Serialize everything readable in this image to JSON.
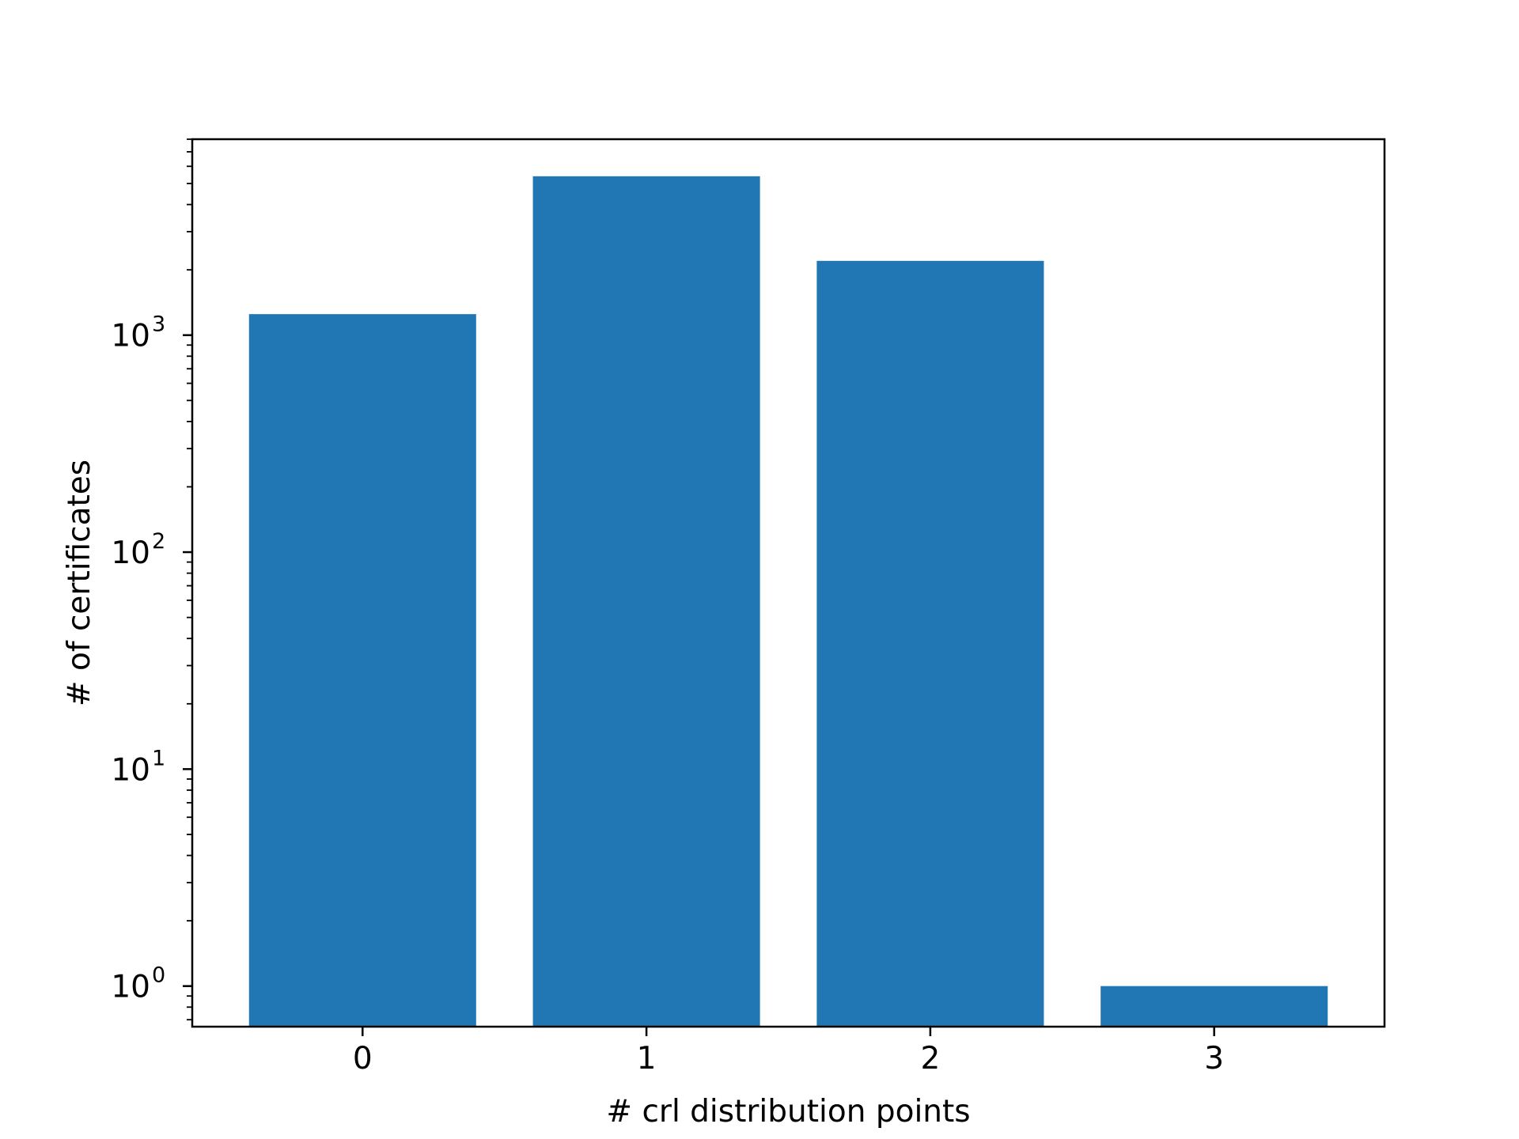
{
  "chart_data": {
    "type": "bar",
    "categories": [
      "0",
      "1",
      "2",
      "3"
    ],
    "values": [
      1250,
      5400,
      2200,
      1
    ],
    "title": "",
    "xlabel": "# crl distribution points",
    "ylabel": "# of certificates",
    "yscale": "log",
    "ylim": [
      0.65,
      8000
    ],
    "y_ticks": [
      {
        "base": "10",
        "exp": "0",
        "value": 1
      },
      {
        "base": "10",
        "exp": "1",
        "value": 10
      },
      {
        "base": "10",
        "exp": "2",
        "value": 100
      },
      {
        "base": "10",
        "exp": "3",
        "value": 1000
      }
    ],
    "grid": false,
    "legend": "none",
    "colors": {
      "bar": "#2077b4",
      "axis": "#000000"
    }
  }
}
